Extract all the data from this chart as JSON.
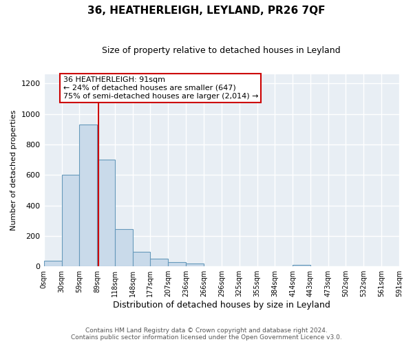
{
  "title": "36, HEATHERLEIGH, LEYLAND, PR26 7QF",
  "subtitle": "Size of property relative to detached houses in Leyland",
  "xlabel": "Distribution of detached houses by size in Leyland",
  "ylabel": "Number of detached properties",
  "bin_edges": [
    0,
    30,
    59,
    89,
    118,
    148,
    177,
    207,
    236,
    266,
    296,
    325,
    355,
    384,
    414,
    443,
    473,
    502,
    532,
    561,
    591
  ],
  "bar_heights": [
    37,
    600,
    930,
    700,
    245,
    95,
    52,
    30,
    18,
    0,
    0,
    0,
    0,
    0,
    12,
    0,
    0,
    0,
    0,
    0
  ],
  "bar_color": "#c9daea",
  "bar_edge_color": "#6699bb",
  "property_size": 91,
  "vline_color": "#cc0000",
  "annotation_line1": "36 HEATHERLEIGH: 91sqm",
  "annotation_line2": "← 24% of detached houses are smaller (647)",
  "annotation_line3": "75% of semi-detached houses are larger (2,014) →",
  "annotation_box_color": "#ffffff",
  "annotation_box_edge_color": "#cc0000",
  "ylim": [
    0,
    1260
  ],
  "yticks": [
    0,
    200,
    400,
    600,
    800,
    1000,
    1200
  ],
  "tick_labels": [
    "0sqm",
    "30sqm",
    "59sqm",
    "89sqm",
    "118sqm",
    "148sqm",
    "177sqm",
    "207sqm",
    "236sqm",
    "266sqm",
    "296sqm",
    "325sqm",
    "355sqm",
    "384sqm",
    "414sqm",
    "443sqm",
    "473sqm",
    "502sqm",
    "532sqm",
    "561sqm",
    "591sqm"
  ],
  "footer1": "Contains HM Land Registry data © Crown copyright and database right 2024.",
  "footer2": "Contains public sector information licensed under the Open Government Licence v3.0.",
  "plot_bg_color": "#e8eef4",
  "fig_bg_color": "#ffffff",
  "grid_color": "#ffffff"
}
